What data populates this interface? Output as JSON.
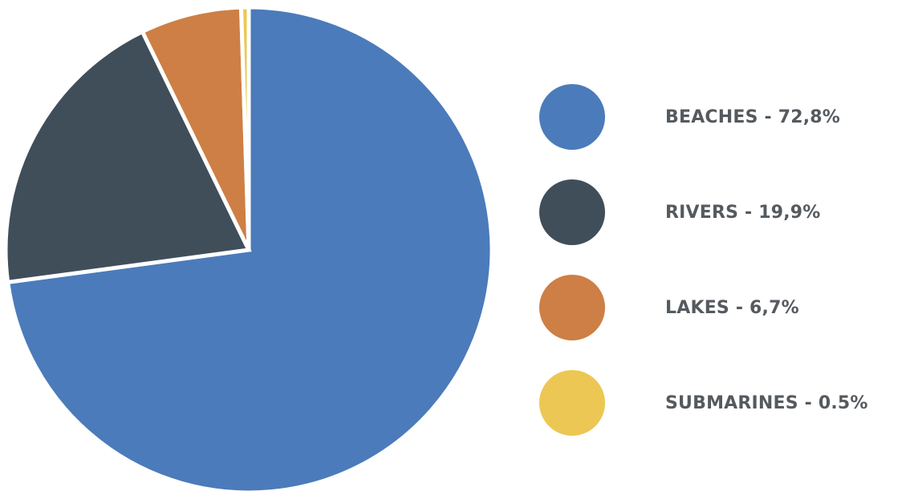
{
  "chart_data": {
    "type": "pie",
    "categories": [
      "BEACHES",
      "RIVERS",
      "LAKES",
      "SUBMARINES"
    ],
    "values": [
      72.8,
      19.9,
      6.7,
      0.5
    ],
    "colors": [
      "#4b7bba",
      "#404e5a",
      "#cd7f45",
      "#ecc753"
    ],
    "legend_labels": [
      "BEACHES - 72,8%",
      "RIVERS - 19,9%",
      "LAKES - 6,7%",
      "SUBMARINES - 0.5%"
    ],
    "legend_position": "right",
    "start": "top",
    "direction": "clockwise",
    "separator_color": "#ffffff"
  }
}
